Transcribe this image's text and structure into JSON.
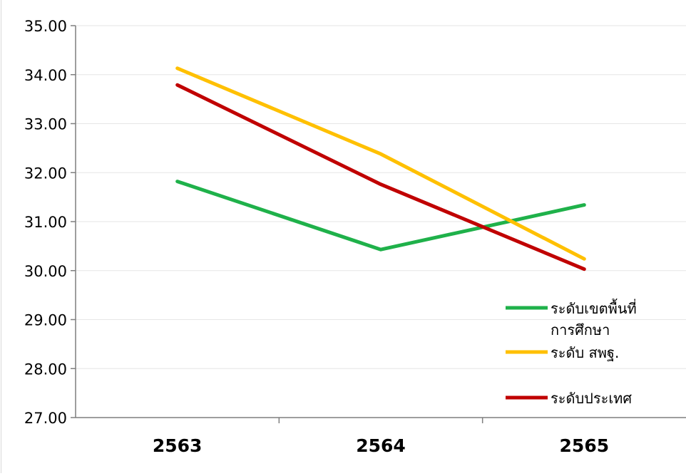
{
  "chart_data": {
    "type": "line",
    "title": "",
    "xlabel": "",
    "ylabel": "",
    "categories": [
      "2563",
      "2564",
      "2565"
    ],
    "ylim": [
      27,
      35
    ],
    "yticks": [
      "27.00",
      "28.00",
      "29.00",
      "30.00",
      "31.00",
      "32.00",
      "33.00",
      "34.00",
      "35.00"
    ],
    "grid": true,
    "legend_position": "bottom-right",
    "series": [
      {
        "name": "ระดับเขตพื้นที่การศึกษา",
        "name_lines": [
          "ระดับเขตพื้นที่",
          "การศึกษา"
        ],
        "color": "#1fb14a",
        "values": [
          31.82,
          30.43,
          31.34
        ]
      },
      {
        "name": "ระดับ สพฐ.",
        "name_lines": [
          "ระดับ สพฐ."
        ],
        "color": "#ffc000",
        "values": [
          34.13,
          32.38,
          30.24
        ]
      },
      {
        "name": "ระดับประเทศ",
        "name_lines": [
          "ระดับประเทศ"
        ],
        "color": "#c00000",
        "values": [
          33.79,
          31.76,
          30.03
        ]
      }
    ]
  }
}
